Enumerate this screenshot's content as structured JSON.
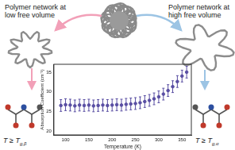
{
  "diagram": {
    "left_label": [
      "Polymer network at",
      "low free volume"
    ],
    "right_label": [
      "Polymer network at",
      "high free volume"
    ],
    "left_condition": {
      "main": "T ≥ T",
      "sub": "g,β"
    },
    "right_condition": {
      "main": "T ≥ T",
      "sub": "g,α"
    }
  },
  "chart_data": {
    "type": "scatter",
    "x_label": "Temperature (K)",
    "y_label": "Absorption Coefficient (cm⁻¹)",
    "x": [
      90,
      100,
      110,
      120,
      130,
      140,
      150,
      160,
      170,
      180,
      190,
      200,
      210,
      220,
      230,
      240,
      250,
      260,
      270,
      280,
      290,
      300,
      310,
      320,
      330,
      340,
      350,
      360
    ],
    "series": [
      {
        "name": "Absorption Coefficient",
        "color": "#5a4fa3",
        "marker": "circle",
        "values": [
          26.5,
          26.7,
          26.6,
          26.4,
          26.6,
          26.5,
          26.6,
          26.4,
          26.5,
          26.6,
          26.5,
          26.6,
          26.7,
          26.6,
          26.8,
          26.9,
          27.0,
          27.2,
          27.5,
          27.8,
          28.2,
          28.7,
          29.4,
          30.3,
          31.3,
          32.6,
          34.0,
          35.0
        ],
        "errors": [
          1.5,
          1.5,
          1.5,
          1.5,
          1.5,
          1.5,
          1.5,
          1.5,
          1.5,
          1.5,
          1.5,
          1.5,
          1.5,
          1.5,
          1.5,
          1.5,
          1.5,
          1.5,
          1.5,
          1.5,
          1.5,
          1.5,
          1.5,
          1.5,
          1.5,
          1.5,
          1.5,
          1.5
        ]
      }
    ],
    "xlim": [
      75,
      370
    ],
    "xticks": [
      100,
      150,
      200,
      250,
      300,
      350
    ],
    "ylim": [
      19,
      37
    ],
    "yticks": [
      20,
      25,
      30,
      35
    ],
    "grid": false
  }
}
